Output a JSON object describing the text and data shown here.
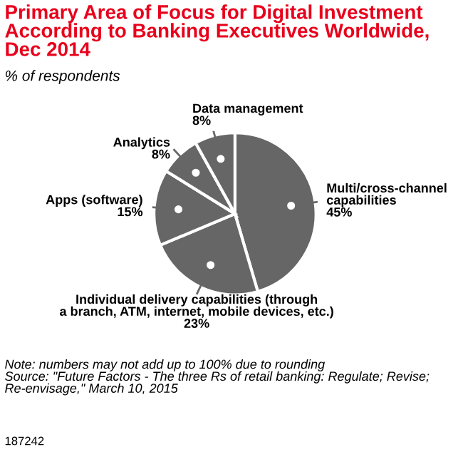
{
  "chart_data": {
    "type": "pie",
    "title": "Primary Area of Focus for Digital Investment\nAccording to Banking Executives Worldwide,\nDec 2014",
    "subtitle": "% of respondents",
    "categories": [
      "Multi/cross-channel\ncapabilities",
      "Individual delivery capabilities (through\na branch, ATM, internet, mobile devices, etc.)",
      "Apps (software)",
      "Analytics",
      "Data management"
    ],
    "values": [
      45,
      23,
      15,
      8,
      8
    ],
    "value_labels": [
      "45%",
      "23%",
      "15%",
      "8%",
      "8%"
    ],
    "colors": [
      "#666666",
      "#666666",
      "#666666",
      "#666666",
      "#666666"
    ],
    "annotations": [
      "Note: numbers may not add up to 100% due to rounding\nSource: \"Future Factors - The three Rs of retail banking: Regulate; Revise; Re-envisage,\" March 10, 2015",
      "187242"
    ]
  }
}
